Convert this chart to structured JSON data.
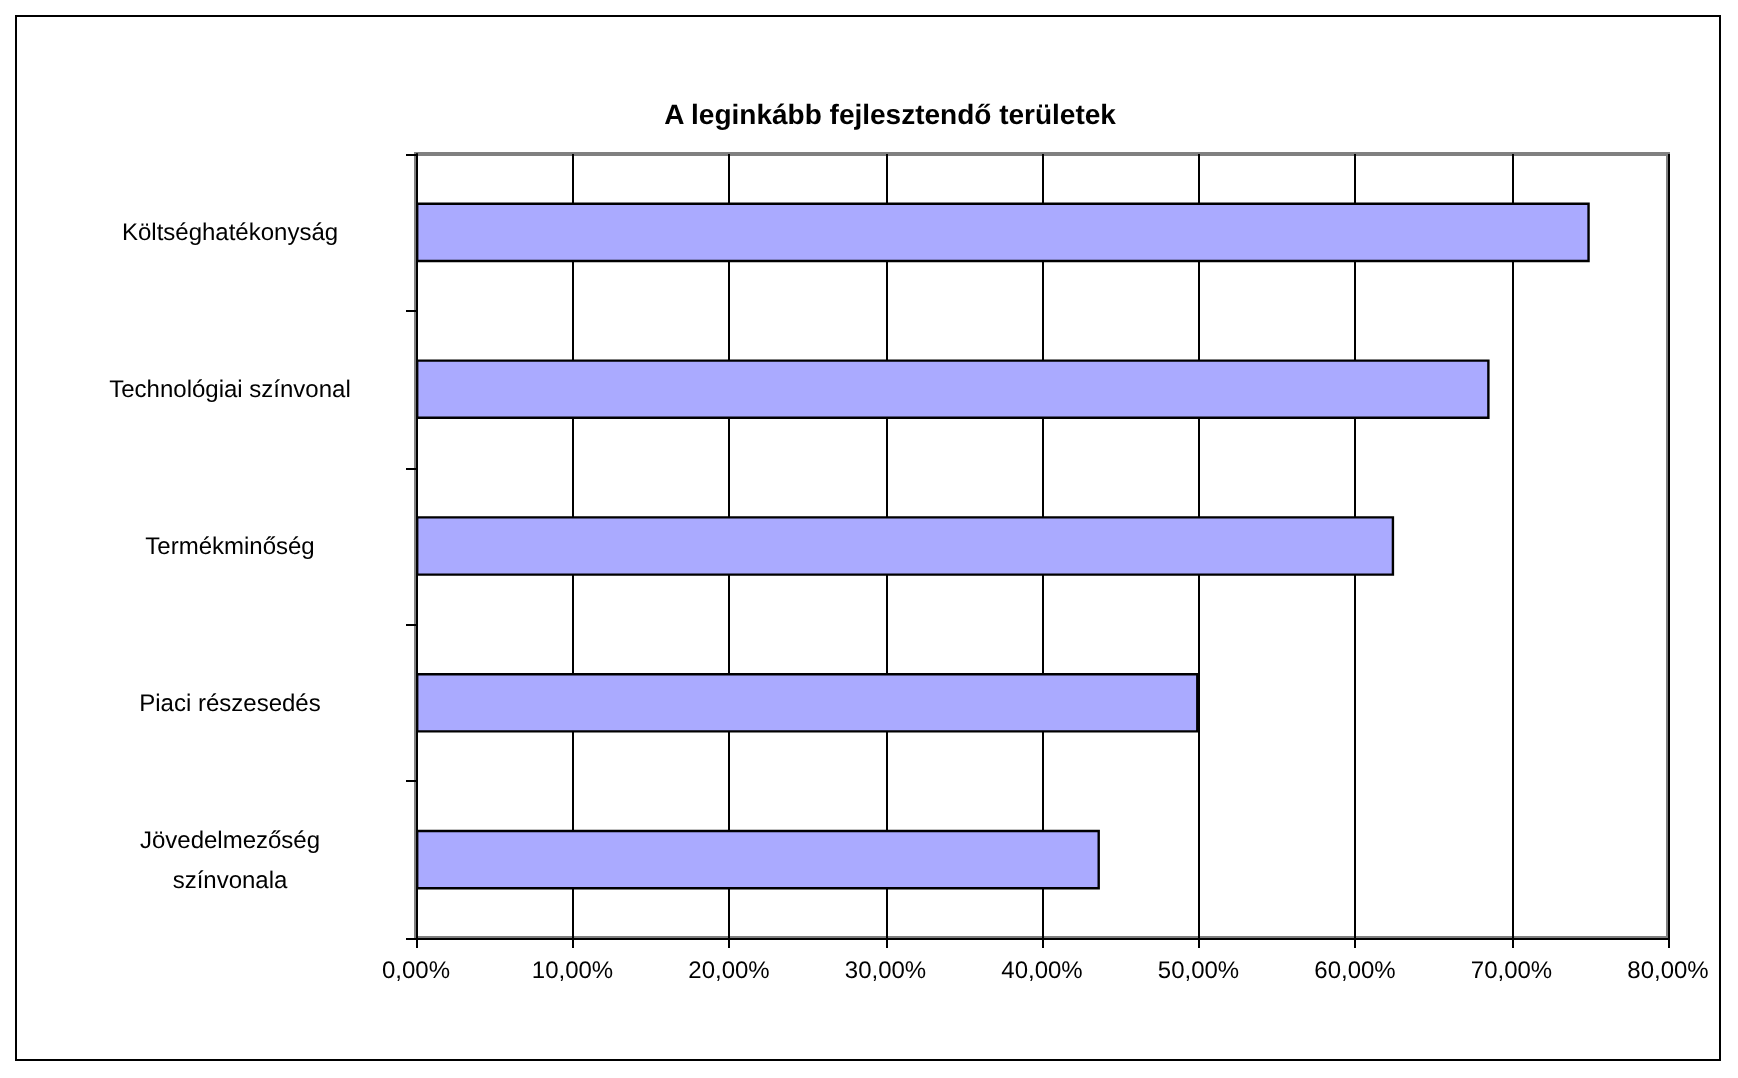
{
  "chart_data": {
    "type": "bar",
    "orientation": "horizontal",
    "title": "A leginkább fejlesztendő területek",
    "categories": [
      "Költséghatékonyság",
      "Technológiai színvonal",
      "Termékminőség",
      "Piaci részesedés",
      "Jövedelmezőség\nszínvonala"
    ],
    "values": [
      75,
      68.6,
      62.5,
      50,
      43.7
    ],
    "color": "#aaaaff",
    "xlim": [
      0,
      80
    ],
    "xticks": [
      {
        "value": 0,
        "label": "0,00%"
      },
      {
        "value": 10,
        "label": "10,00%"
      },
      {
        "value": 20,
        "label": "20,00%"
      },
      {
        "value": 30,
        "label": "30,00%"
      },
      {
        "value": 40,
        "label": "40,00%"
      },
      {
        "value": 50,
        "label": "50,00%"
      },
      {
        "value": 60,
        "label": "60,00%"
      },
      {
        "value": 70,
        "label": "70,00%"
      },
      {
        "value": 80,
        "label": "80,00%"
      }
    ],
    "grid": "x"
  }
}
